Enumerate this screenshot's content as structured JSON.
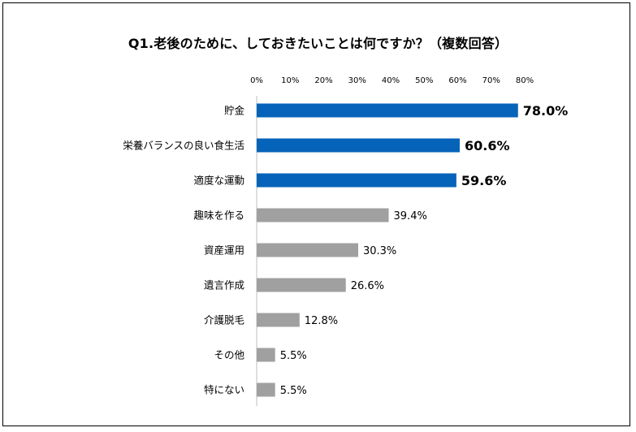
{
  "chart_data": {
    "type": "bar",
    "orientation": "horizontal",
    "title": "Q1.老後のために、しておきたいことは何ですか？（複数回答）",
    "x_ticks": [
      "0%",
      "10%",
      "20%",
      "30%",
      "40%",
      "50%",
      "60%",
      "70%",
      "80%"
    ],
    "xlim": [
      0,
      80
    ],
    "categories": [
      "貯金",
      "栄養バランスの良い食生活",
      "適度な運動",
      "趣味を作る",
      "資産運用",
      "遺言作成",
      "介護脱毛",
      "その他",
      "特にない"
    ],
    "values": [
      78.0,
      60.6,
      59.6,
      39.4,
      30.3,
      26.6,
      12.8,
      5.5,
      5.5
    ],
    "value_labels": [
      "78.0%",
      "60.6%",
      "59.6%",
      "39.4%",
      "30.3%",
      "26.6%",
      "12.8%",
      "5.5%",
      "5.5%"
    ],
    "highlight_count": 3,
    "colors": {
      "highlight": "#0563b9",
      "normal": "#a0a0a0"
    },
    "grid": false,
    "legend": "none"
  }
}
